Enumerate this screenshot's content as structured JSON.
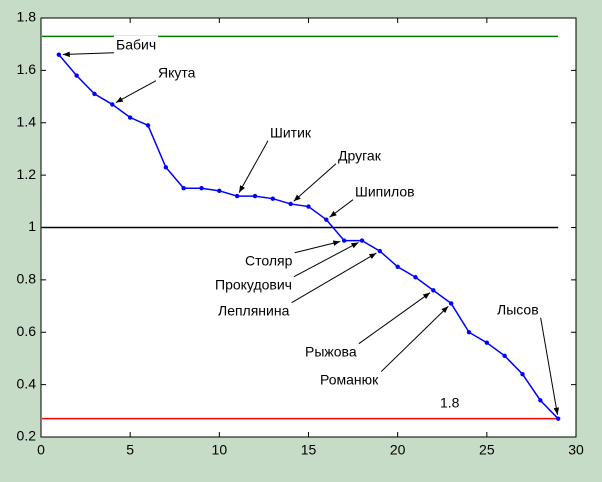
{
  "chart_data": {
    "type": "line",
    "x": [
      1,
      2,
      3,
      4,
      5,
      6,
      7,
      8,
      9,
      10,
      11,
      12,
      13,
      14,
      15,
      16,
      17,
      18,
      19,
      20,
      21,
      22,
      23,
      24,
      25,
      26,
      27,
      28,
      29
    ],
    "series": [
      {
        "color": "#0000ff",
        "values": [
          1.66,
          1.58,
          1.51,
          1.47,
          1.42,
          1.39,
          1.23,
          1.15,
          1.15,
          1.14,
          1.12,
          1.12,
          1.11,
          1.09,
          1.08,
          1.03,
          0.95,
          0.95,
          0.91,
          0.85,
          0.81,
          0.76,
          0.71,
          0.6,
          0.56,
          0.51,
          0.44,
          0.34,
          0.27
        ]
      }
    ],
    "hlines": [
      {
        "value": 1.73,
        "color": "#008000"
      },
      {
        "value": 1.0,
        "color": "#000000"
      },
      {
        "value": 0.27,
        "color": "#ff0000"
      }
    ],
    "xlim": [
      0,
      30
    ],
    "xticks": [
      0,
      5,
      10,
      15,
      20,
      25,
      30
    ],
    "ylim": [
      0.2,
      1.8
    ],
    "yticks": [
      0.2,
      0.4,
      0.6,
      0.8,
      {
        "value": 1,
        "label": "1"
      },
      1.2,
      1.4,
      1.6,
      1.8
    ],
    "annotations": [
      "Бабич",
      "Якута",
      "Шитик",
      "Другак",
      "Шипилов",
      "Столяр",
      "Прокудович",
      "Леплянина",
      "Рыжова",
      "Романюк",
      "Лысов"
    ],
    "note": "1.8",
    "grid": false
  }
}
